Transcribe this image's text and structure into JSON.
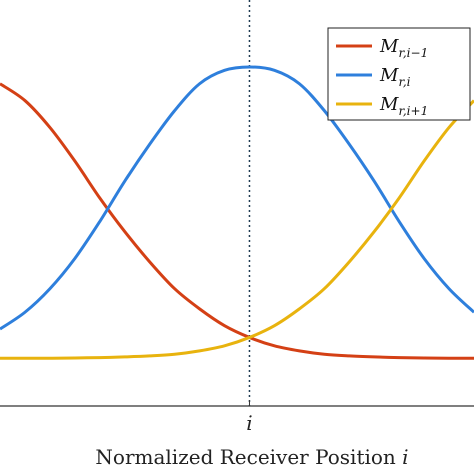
{
  "chart_data": {
    "type": "line",
    "xlabel": "Normalized Receiver Position",
    "xlabel_var": "i",
    "x_ticks": [
      "i"
    ],
    "xlim": [
      -1.0,
      0.9
    ],
    "ylim": [
      0.0,
      1.0
    ],
    "grid": false,
    "reference_line": {
      "x": 0,
      "style": "dotted",
      "color": "#1f3b52"
    },
    "legend_position": "top-right",
    "series": [
      {
        "name": "M_{r,i-1}",
        "label_main": "M",
        "label_sub": "r,i−1",
        "color": "#d44015",
        "x": [
          -1.0,
          -0.9,
          -0.8,
          -0.7,
          -0.6,
          -0.5,
          -0.4,
          -0.3,
          -0.2,
          -0.1,
          0.0,
          0.1,
          0.2,
          0.3,
          0.4,
          0.5,
          0.6,
          0.7,
          0.8,
          0.9
        ],
        "y": [
          0.84,
          0.79,
          0.71,
          0.61,
          0.5,
          0.4,
          0.31,
          0.23,
          0.17,
          0.12,
          0.085,
          0.06,
          0.045,
          0.035,
          0.03,
          0.027,
          0.025,
          0.024,
          0.023,
          0.023
        ]
      },
      {
        "name": "M_{r,i}",
        "label_main": "M",
        "label_sub": "r,i",
        "color": "#2e7fdc",
        "x": [
          -1.0,
          -0.9,
          -0.8,
          -0.7,
          -0.6,
          -0.5,
          -0.4,
          -0.3,
          -0.2,
          -0.1,
          0.0,
          0.1,
          0.2,
          0.3,
          0.4,
          0.5,
          0.6,
          0.7,
          0.8,
          0.9
        ],
        "y": [
          0.11,
          0.16,
          0.23,
          0.32,
          0.43,
          0.55,
          0.66,
          0.76,
          0.84,
          0.88,
          0.89,
          0.88,
          0.84,
          0.76,
          0.66,
          0.55,
          0.43,
          0.32,
          0.23,
          0.16
        ]
      },
      {
        "name": "M_{r,i+1}",
        "label_main": "M",
        "label_sub": "r,i+1",
        "color": "#e8b30e",
        "x": [
          -1.0,
          -0.9,
          -0.8,
          -0.7,
          -0.6,
          -0.5,
          -0.4,
          -0.3,
          -0.2,
          -0.1,
          0.0,
          0.1,
          0.2,
          0.3,
          0.4,
          0.5,
          0.6,
          0.7,
          0.8,
          0.9
        ],
        "y": [
          0.023,
          0.023,
          0.023,
          0.024,
          0.025,
          0.027,
          0.03,
          0.035,
          0.045,
          0.06,
          0.085,
          0.12,
          0.17,
          0.23,
          0.31,
          0.4,
          0.5,
          0.61,
          0.71,
          0.79
        ]
      }
    ]
  }
}
